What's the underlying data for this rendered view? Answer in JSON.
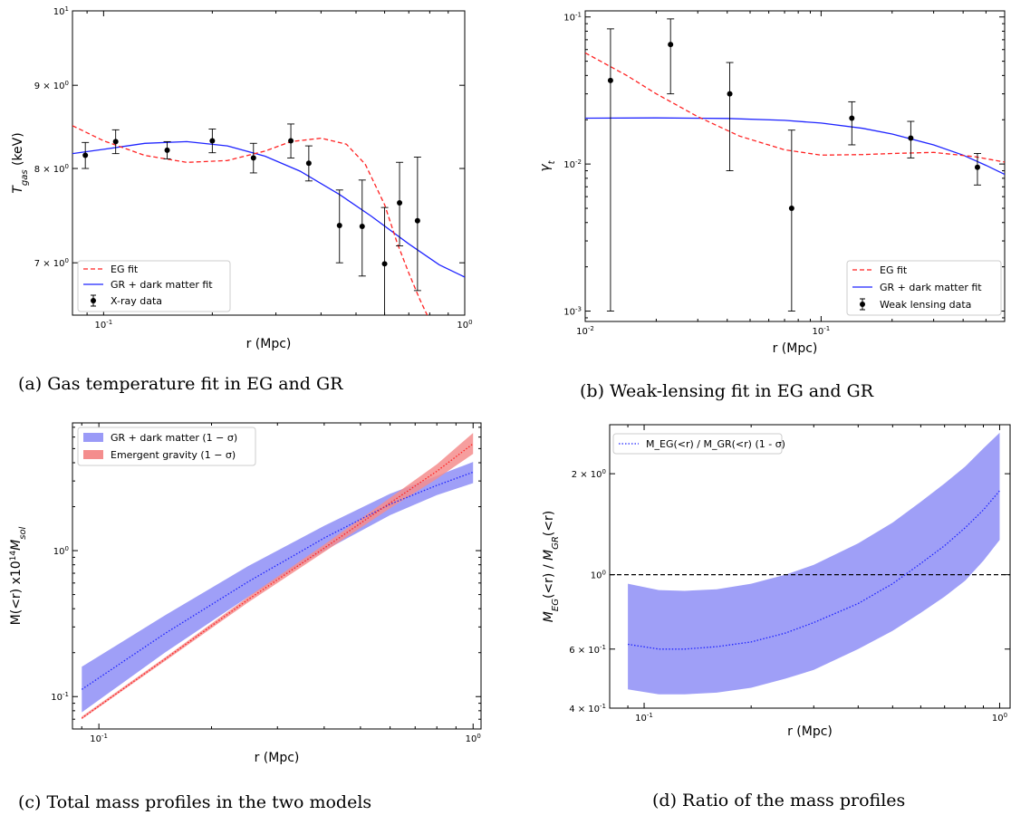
{
  "captions": {
    "a": "(a) Gas temperature fit in EG and GR",
    "b": "(b) Weak-lensing fit in EG and GR",
    "c": "(c) Total mass profiles in the two models",
    "d": "(d) Ratio of the mass profiles"
  },
  "colors": {
    "eg": "#ff2222",
    "gr": "#1f24ff",
    "data": "#000000",
    "gr_band": "#9a9af7",
    "eg_band": "#f48d8d",
    "ref_line": "#000000"
  },
  "chart_data": [
    {
      "id": "a",
      "type": "line",
      "xlabel": "r (Mpc)",
      "ylabel": "T_gas (keV)",
      "xscale": "log",
      "yscale": "log",
      "xlim": [
        0.082,
        1.0
      ],
      "ylim": [
        6.5,
        10.0
      ],
      "xticks": [
        {
          "v": 0.1,
          "label": "10^-1"
        },
        {
          "v": 1.0,
          "label": "10^0"
        }
      ],
      "yticks": [
        {
          "v": 7,
          "label": "7 × 10^0"
        },
        {
          "v": 8,
          "label": "8 × 10^0"
        },
        {
          "v": 9,
          "label": "9 × 10^0"
        },
        {
          "v": 10,
          "label": "10^1"
        }
      ],
      "legend": {
        "position": "lower-left",
        "entries": [
          "EG fit",
          "GR + dark matter fit",
          "X-ray data"
        ]
      },
      "series": [
        {
          "name": "EG fit",
          "style": "dashed",
          "color": "#ff2222",
          "x": [
            0.082,
            0.1,
            0.13,
            0.17,
            0.22,
            0.28,
            0.33,
            0.4,
            0.47,
            0.53,
            0.6,
            0.65,
            0.7,
            0.75,
            0.8
          ],
          "y": [
            8.5,
            8.32,
            8.15,
            8.07,
            8.09,
            8.2,
            8.31,
            8.35,
            8.28,
            8.05,
            7.6,
            7.2,
            6.9,
            6.65,
            6.45
          ]
        },
        {
          "name": "GR + dark matter fit",
          "style": "solid",
          "color": "#1f24ff",
          "x": [
            0.082,
            0.1,
            0.13,
            0.17,
            0.22,
            0.28,
            0.35,
            0.45,
            0.55,
            0.7,
            0.85,
            1.0
          ],
          "y": [
            8.17,
            8.22,
            8.29,
            8.31,
            8.26,
            8.14,
            7.97,
            7.71,
            7.48,
            7.19,
            6.98,
            6.86
          ]
        },
        {
          "name": "X-ray data",
          "style": "points",
          "color": "#000000",
          "x": [
            0.089,
            0.108,
            0.15,
            0.2,
            0.26,
            0.33,
            0.37,
            0.45,
            0.52,
            0.6,
            0.66,
            0.74
          ],
          "y": [
            8.15,
            8.31,
            8.21,
            8.32,
            8.12,
            8.32,
            8.06,
            7.38,
            7.37,
            6.99,
            7.62,
            7.43
          ],
          "err": [
            0.15,
            0.14,
            0.1,
            0.14,
            0.17,
            0.2,
            0.2,
            0.38,
            0.5,
            0.58,
            0.45,
            0.7
          ]
        }
      ]
    },
    {
      "id": "b",
      "type": "line",
      "xlabel": "r (Mpc)",
      "ylabel": "γt",
      "xscale": "log",
      "yscale": "log",
      "xlim": [
        0.01,
        0.6
      ],
      "ylim": [
        0.00085,
        0.11
      ],
      "xticks": [
        {
          "v": 0.01,
          "label": "10^-2"
        },
        {
          "v": 0.1,
          "label": "10^-1"
        }
      ],
      "yticks": [
        {
          "v": 0.001,
          "label": "10^-3"
        },
        {
          "v": 0.01,
          "label": "10^-2"
        },
        {
          "v": 0.1,
          "label": "10^-1"
        }
      ],
      "legend": {
        "position": "lower-right",
        "entries": [
          "EG fit",
          "GR + dark matter fit",
          "Weak lensing data"
        ]
      },
      "series": [
        {
          "name": "EG fit",
          "style": "dashed",
          "color": "#ff2222",
          "x": [
            0.01,
            0.015,
            0.02,
            0.03,
            0.045,
            0.07,
            0.1,
            0.15,
            0.2,
            0.3,
            0.45,
            0.6
          ],
          "y": [
            0.057,
            0.04,
            0.03,
            0.021,
            0.0155,
            0.0125,
            0.0115,
            0.0116,
            0.0118,
            0.012,
            0.0112,
            0.0103
          ]
        },
        {
          "name": "GR + dark matter fit",
          "style": "solid",
          "color": "#1f24ff",
          "x": [
            0.01,
            0.02,
            0.04,
            0.07,
            0.1,
            0.15,
            0.2,
            0.3,
            0.4,
            0.5,
            0.6
          ],
          "y": [
            0.0205,
            0.0206,
            0.0204,
            0.0198,
            0.019,
            0.0175,
            0.016,
            0.0135,
            0.0115,
            0.0098,
            0.0085
          ]
        },
        {
          "name": "Weak lensing data",
          "style": "points",
          "color": "#000000",
          "x": [
            0.0128,
            0.023,
            0.041,
            0.075,
            0.135,
            0.24,
            0.46
          ],
          "y": [
            0.037,
            0.065,
            0.03,
            0.005,
            0.0205,
            0.015,
            0.0095
          ],
          "ylo": [
            0.001,
            0.03,
            0.009,
            0.001,
            0.0135,
            0.011,
            0.0072
          ],
          "yhi": [
            0.083,
            0.097,
            0.049,
            0.017,
            0.0265,
            0.0195,
            0.0118
          ]
        }
      ]
    },
    {
      "id": "c",
      "type": "area",
      "xlabel": "r (Mpc)",
      "ylabel": "M(<r) x10^14 M_sol",
      "xscale": "log",
      "yscale": "log",
      "xlim": [
        0.085,
        1.05
      ],
      "ylim": [
        0.06,
        7.5
      ],
      "xticks": [
        {
          "v": 0.1,
          "label": "10^-1"
        },
        {
          "v": 1.0,
          "label": "10^0"
        }
      ],
      "yticks": [
        {
          "v": 0.1,
          "label": "10^-1"
        },
        {
          "v": 1.0,
          "label": "10^0"
        }
      ],
      "legend": {
        "position": "top-left",
        "entries": [
          "GR + dark matter (1 − σ)",
          "Emergent gravity (1 − σ)"
        ]
      },
      "series": [
        {
          "name": "GR + dark matter (1 − σ)",
          "color": "#9a9af7",
          "x": [
            0.09,
            0.15,
            0.25,
            0.4,
            0.6,
            0.8,
            1.0
          ],
          "lower": [
            0.078,
            0.2,
            0.48,
            1.0,
            1.75,
            2.4,
            2.9
          ],
          "upper": [
            0.16,
            0.36,
            0.78,
            1.48,
            2.45,
            3.25,
            4.05
          ],
          "mid": [
            0.112,
            0.27,
            0.61,
            1.22,
            2.08,
            2.8,
            3.45
          ]
        },
        {
          "name": "Emergent gravity (1 − σ)",
          "color": "#f48d8d",
          "x": [
            0.09,
            0.15,
            0.25,
            0.4,
            0.6,
            0.8,
            1.0
          ],
          "lower": [
            0.07,
            0.175,
            0.44,
            0.98,
            1.95,
            3.1,
            4.6
          ],
          "upper": [
            0.073,
            0.185,
            0.48,
            1.1,
            2.3,
            3.9,
            6.4
          ],
          "mid": [
            0.071,
            0.18,
            0.46,
            1.04,
            2.12,
            3.5,
            5.4
          ]
        }
      ]
    },
    {
      "id": "d",
      "type": "area",
      "xlabel": "r (Mpc)",
      "ylabel": "M_EG(<r) / M_GR(<r)",
      "xscale": "log",
      "yscale": "log",
      "xlim": [
        0.08,
        1.07
      ],
      "ylim": [
        0.4,
        2.8
      ],
      "xticks": [
        {
          "v": 0.1,
          "label": "10^-1"
        },
        {
          "v": 1.0,
          "label": "10^0"
        }
      ],
      "yticks": [
        {
          "v": 0.4,
          "label": "4 × 10^-1"
        },
        {
          "v": 0.6,
          "label": "6 × 10^-1"
        },
        {
          "v": 1.0,
          "label": "10^0"
        },
        {
          "v": 2.0,
          "label": "2 × 10^0"
        }
      ],
      "legend": {
        "position": "top-left",
        "entries": [
          "M_EG(<r) / M_GR(<r) (1 - σ)"
        ]
      },
      "reference_line": {
        "y": 1.0,
        "style": "dashed"
      },
      "series": [
        {
          "name": "M_EG(<r) / M_GR(<r) (1 - σ)",
          "color": "#9a9af7",
          "x": [
            0.09,
            0.11,
            0.13,
            0.16,
            0.2,
            0.25,
            0.3,
            0.4,
            0.5,
            0.6,
            0.7,
            0.8,
            0.9,
            1.0
          ],
          "lower": [
            0.455,
            0.44,
            0.44,
            0.445,
            0.46,
            0.49,
            0.52,
            0.6,
            0.68,
            0.77,
            0.86,
            0.96,
            1.1,
            1.27
          ],
          "upper": [
            0.94,
            0.9,
            0.895,
            0.905,
            0.94,
            1.0,
            1.07,
            1.24,
            1.43,
            1.65,
            1.87,
            2.1,
            2.38,
            2.65
          ],
          "mid": [
            0.62,
            0.6,
            0.6,
            0.61,
            0.63,
            0.67,
            0.72,
            0.82,
            0.94,
            1.08,
            1.22,
            1.38,
            1.56,
            1.78
          ]
        }
      ]
    }
  ]
}
